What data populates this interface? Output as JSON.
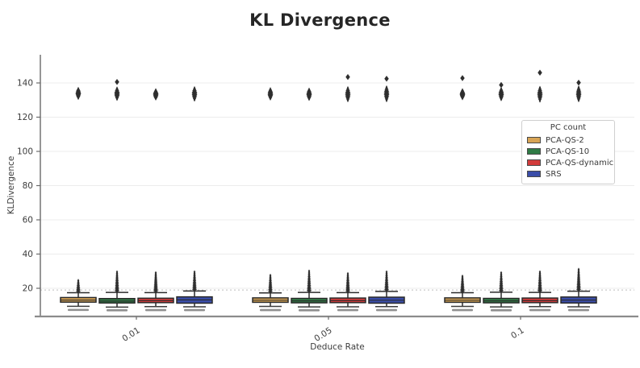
{
  "chart_data": {
    "type": "boxplot",
    "title": "KL Divergence",
    "xlabel": "Deduce Rate",
    "ylabel": "KLDivergence",
    "categories": [
      "0.01",
      "0.05",
      "0.1"
    ],
    "yticks": [
      20,
      40,
      60,
      80,
      100,
      120,
      140
    ],
    "ylim": [
      3.5,
      155
    ],
    "grid": "horizontal-light",
    "reference_line": {
      "y": 19,
      "style": "dotted",
      "color": "#bdbdbd"
    },
    "legend": {
      "title": "PC count",
      "position": "upper-right"
    },
    "edge_color": "#2a2a2a",
    "series": [
      {
        "name": "PCA-QS-2",
        "color": "#D8A455",
        "boxes": [
          {
            "category": "0.01",
            "whisker_low": 9.5,
            "q1": 11.9,
            "median": 13.1,
            "q3": 14.6,
            "whisker_high": 17.4,
            "outliers_low": 7.4,
            "outliers_near_max": 24.5,
            "outlier_cluster_high": [
              131.2,
              136.6
            ],
            "outlier_extreme": null
          },
          {
            "category": "0.05",
            "whisker_low": 9.4,
            "q1": 11.8,
            "median": 13.0,
            "q3": 14.4,
            "whisker_high": 17.3,
            "outliers_low": 7.3,
            "outliers_near_max": 27.5,
            "outlier_cluster_high": [
              130.8,
              136.4
            ],
            "outlier_extreme": null
          },
          {
            "category": "0.1",
            "whisker_low": 9.4,
            "q1": 11.8,
            "median": 13.0,
            "q3": 14.4,
            "whisker_high": 17.4,
            "outliers_low": 7.3,
            "outliers_near_max": 27.0,
            "outlier_cluster_high": [
              131.0,
              135.8
            ],
            "outlier_extreme": 142.8
          }
        ]
      },
      {
        "name": "PCA-QS-10",
        "color": "#2F7B45",
        "boxes": [
          {
            "category": "0.01",
            "whisker_low": 9.0,
            "q1": 11.4,
            "median": 12.5,
            "q3": 14.0,
            "whisker_high": 17.6,
            "outliers_low": 7.2,
            "outliers_near_max": 29.5,
            "outlier_cluster_high": [
              130.6,
              136.8
            ],
            "outlier_extreme": 140.6
          },
          {
            "category": "0.05",
            "whisker_low": 9.1,
            "q1": 11.5,
            "median": 12.6,
            "q3": 14.1,
            "whisker_high": 17.6,
            "outliers_low": 7.2,
            "outliers_near_max": 30.0,
            "outlier_cluster_high": [
              130.6,
              136.2
            ],
            "outlier_extreme": null
          },
          {
            "category": "0.1",
            "whisker_low": 9.1,
            "q1": 11.5,
            "median": 12.6,
            "q3": 14.1,
            "whisker_high": 17.7,
            "outliers_low": 7.2,
            "outliers_near_max": 29.0,
            "outlier_cluster_high": [
              130.4,
              136.6
            ],
            "outlier_extreme": 138.8
          }
        ]
      },
      {
        "name": "PCA-QS-dynamic",
        "color": "#D23B3B",
        "boxes": [
          {
            "category": "0.01",
            "whisker_low": 9.3,
            "q1": 11.6,
            "median": 12.8,
            "q3": 14.2,
            "whisker_high": 17.5,
            "outliers_low": 7.3,
            "outliers_near_max": 29.0,
            "outlier_cluster_high": [
              130.8,
              135.8
            ],
            "outlier_extreme": null
          },
          {
            "category": "0.05",
            "whisker_low": 9.2,
            "q1": 11.6,
            "median": 12.8,
            "q3": 14.3,
            "whisker_high": 17.5,
            "outliers_low": 7.3,
            "outliers_near_max": 28.5,
            "outlier_cluster_high": [
              129.8,
              137.0
            ],
            "outlier_extreme": 143.5
          },
          {
            "category": "0.1",
            "whisker_low": 9.3,
            "q1": 11.6,
            "median": 12.8,
            "q3": 14.3,
            "whisker_high": 17.6,
            "outliers_low": 7.3,
            "outliers_near_max": 29.5,
            "outlier_cluster_high": [
              129.6,
              137.2
            ],
            "outlier_extreme": 146.0
          }
        ]
      },
      {
        "name": "SRS",
        "color": "#3A4DA8",
        "boxes": [
          {
            "category": "0.01",
            "whisker_low": 9.2,
            "q1": 11.3,
            "median": 13.2,
            "q3": 15.0,
            "whisker_high": 18.4,
            "outliers_low": 7.3,
            "outliers_near_max": 29.5,
            "outlier_cluster_high": [
              130.2,
              137.0
            ],
            "outlier_extreme": null
          },
          {
            "category": "0.05",
            "whisker_low": 9.3,
            "q1": 11.3,
            "median": 13.0,
            "q3": 14.8,
            "whisker_high": 18.2,
            "outliers_low": 7.3,
            "outliers_near_max": 29.5,
            "outlier_cluster_high": [
              129.8,
              137.5
            ],
            "outlier_extreme": 142.5
          },
          {
            "category": "0.1",
            "whisker_low": 9.2,
            "q1": 11.4,
            "median": 13.1,
            "q3": 14.9,
            "whisker_high": 18.3,
            "outliers_low": 7.3,
            "outliers_near_max": 31.0,
            "outlier_cluster_high": [
              129.8,
              137.4
            ],
            "outlier_extreme": 140.2
          }
        ]
      }
    ]
  }
}
